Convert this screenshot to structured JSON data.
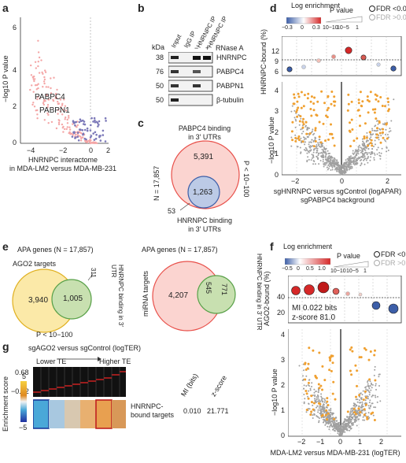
{
  "panels": {
    "a": "a",
    "b": "b",
    "c": "c",
    "d": "d",
    "e": "e",
    "f": "f",
    "g": "g"
  },
  "panel_a": {
    "ylabel": "−log10 P value",
    "xlabel_line1": "HNRNPC interactome",
    "xlabel_line2": "in MDA-LM2 versus MDA-MB-231",
    "xticks": [
      "−4",
      "−2",
      "0",
      "2"
    ],
    "yticks": [
      "0",
      "2",
      "4",
      "6"
    ],
    "annot1": "PABPC4",
    "annot2": "PABPN1"
  },
  "panel_b": {
    "kda_label": "kDa",
    "lanes": [
      "Input",
      "IgG IP",
      "HNRNPC IP",
      "HNRNPC IP"
    ],
    "rnase_label": "RNase A",
    "rnase_minus": "−",
    "rnase_plus": "+",
    "rows": [
      {
        "kda": "38",
        "protein": "HNRNPC"
      },
      {
        "kda": "76",
        "protein": "PABPC4"
      },
      {
        "kda": "50",
        "protein": "PABPN1"
      },
      {
        "kda": "50",
        "protein": "β-tubulin"
      }
    ]
  },
  "panel_c": {
    "title_line1": "PABPC4 binding",
    "title_line2": "in 3′ UTRs",
    "n_label": "N = 17,857",
    "big_value": "5,391",
    "overlap_value": "1,263",
    "small_value": "53",
    "pvalue": "P < 10−100",
    "bottom_line1": "HNRNPC binding",
    "bottom_line2": "in 3′ UTRs"
  },
  "panel_d": {
    "legend_title": "Log enrichment",
    "legend_ticks": [
      "−0.3",
      "0",
      "0.3"
    ],
    "pval_title": "P value",
    "pval_ticks": [
      "10−10",
      "10−5",
      "1"
    ],
    "fdr1": "FDR <0.05",
    "fdr2": "FDR >0.05",
    "top_ylabel": "HNRNPC-bound (%)",
    "top_yticks": [
      "12",
      "9",
      "6"
    ],
    "ylabel": "−log10 P value",
    "yticks": [
      "0",
      "1",
      "2",
      "3",
      "4"
    ],
    "xticks": [
      "−2",
      "0",
      "2"
    ],
    "xlabel_line1": "sgHNRNPC versus sgControl (logAPAR)",
    "xlabel_line2": "sgPABPC4 background"
  },
  "panel_e": {
    "left_title": "APA genes (N = 17,857)",
    "left_outer": "AGO2 targets",
    "left_big": "3,940",
    "left_overlap": "1,005",
    "left_small": "311",
    "left_side": "HNRNPC binding in 3′ UTR",
    "left_pvalue": "P < 10−100",
    "right_title": "APA genes (N = 17,857)",
    "right_outer": "miRNA targets",
    "right_big": "4,207",
    "right_overlap": "545",
    "right_small": "771",
    "right_side": "HNRNPC binding in 3′ UTR"
  },
  "panel_f": {
    "legend_title": "Log enrichment",
    "legend_ticks": [
      "−0.5",
      "0",
      "0.5",
      "1.0"
    ],
    "pval_title": "P value",
    "pval_ticks": [
      "10−10",
      "10−5",
      "1"
    ],
    "fdr1": "FDR <0.05",
    "fdr2": "FDR >0.05",
    "top_ylabel": "AGO2-bound (%)",
    "top_yticks": [
      "40",
      "20"
    ],
    "mi_line1": "MI 0.022 bits",
    "mi_line2": "z-score 81.0",
    "ylabel": "−log10 P value",
    "yticks": [
      "0",
      "1",
      "2",
      "3",
      "4"
    ],
    "xticks": [
      "−2",
      "−1",
      "0",
      "1",
      "2"
    ],
    "xlabel": "MDA-LM2 versus MDA-MB-231 (logTER)"
  },
  "panel_g": {
    "title": "sgAGO2 versus sgControl (logTER)",
    "lower": "Lower TE",
    "higher": "Higher TE",
    "ymax": "0.68",
    "ymin": "−0.72",
    "cbar_label": "Enrichment score",
    "cbar_max": "5",
    "cbar_min": "−5",
    "row_label_line1": "HNRNPC-",
    "row_label_line2": "bound targets",
    "mi_header": "MI (bits)",
    "z_header": "z-score",
    "mi_value": "0.010",
    "z_value": "21.771"
  },
  "colors": {
    "red": "#e8504a",
    "pink": "#f4a6a6",
    "purple": "#7b78b8",
    "orange": "#f0a030",
    "grey": "#9a9a9a",
    "yellow": "#fbe38e",
    "green": "#8bc276",
    "blue": "#3c5ea8"
  }
}
